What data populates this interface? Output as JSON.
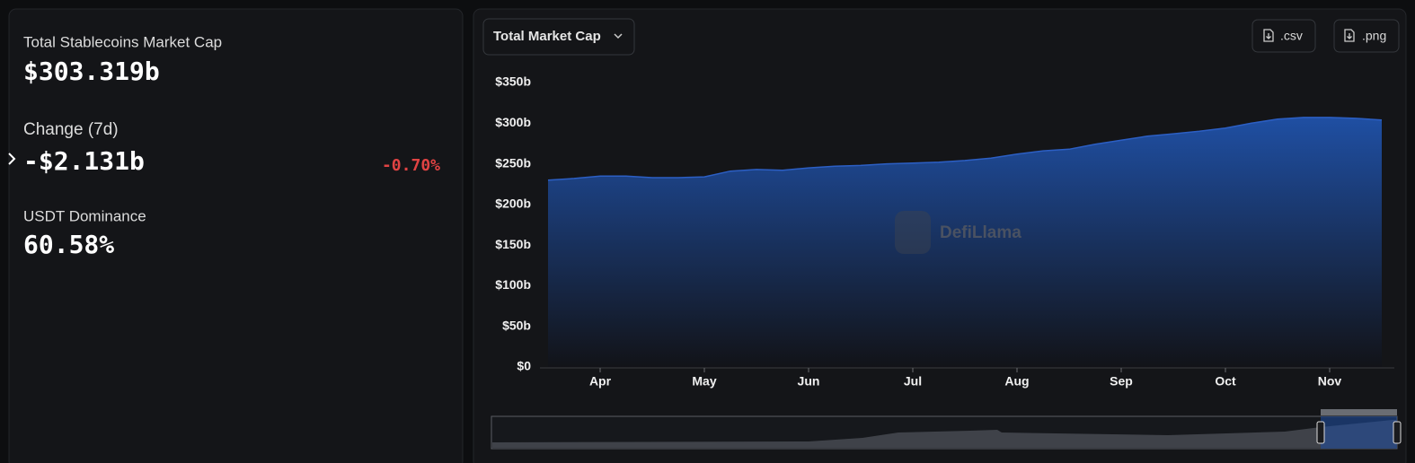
{
  "summary": {
    "items": [
      {
        "label": "Total Stablecoins Market Cap",
        "value": "$303.319b"
      },
      {
        "label": "Change (7d)",
        "value": "-$2.131b",
        "change": "-0.70%"
      },
      {
        "label": "USDT Dominance",
        "value": "60.58%"
      }
    ]
  },
  "toolbar": {
    "dropdown": "Total Market Cap",
    "buttons": [
      ".csv",
      ".png"
    ]
  },
  "chart_data": {
    "type": "area",
    "watermark": "DefiLlama",
    "categories": [
      null,
      null,
      "Apr",
      null,
      null,
      null,
      "May",
      null,
      null,
      null,
      "Jun",
      null,
      null,
      null,
      "Jul",
      null,
      null,
      null,
      "Aug",
      null,
      null,
      null,
      "Sep",
      null,
      null,
      null,
      "Oct",
      null,
      null,
      null,
      "Nov",
      null,
      null
    ],
    "values": [
      230,
      232,
      235,
      235,
      233,
      233,
      234,
      241,
      243,
      242,
      245,
      247,
      248,
      250,
      251,
      252,
      254,
      257,
      262,
      266,
      268,
      274,
      279,
      284,
      287,
      290,
      294,
      300,
      305,
      307,
      307,
      306,
      304
    ],
    "color": "#2c5fc4",
    "ylim": [
      0,
      350
    ],
    "yticks": [
      {
        "value": 0,
        "label": "$0"
      },
      {
        "value": 50,
        "label": "$50b"
      },
      {
        "value": 100,
        "label": "$100b"
      },
      {
        "value": 150,
        "label": "$150b"
      },
      {
        "value": 200,
        "label": "$200b"
      },
      {
        "value": 250,
        "label": "$250b"
      },
      {
        "value": 300,
        "label": "$300b"
      },
      {
        "value": 350,
        "label": "$350b"
      }
    ],
    "grid": false
  }
}
